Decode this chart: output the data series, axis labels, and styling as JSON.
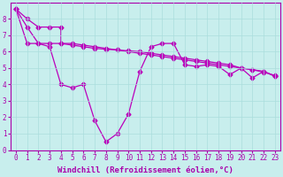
{
  "title": "",
  "xlabel": "Windchill (Refroidissement éolien,°C)",
  "ylabel": "",
  "background_color": "#c8eeed",
  "line_color": "#bb00bb",
  "grid_color": "#aadddd",
  "xlim": [
    -0.5,
    23.5
  ],
  "ylim": [
    0,
    9
  ],
  "yticks": [
    0,
    1,
    2,
    3,
    4,
    5,
    6,
    7,
    8
  ],
  "xticks": [
    0,
    1,
    2,
    3,
    4,
    5,
    6,
    7,
    8,
    9,
    10,
    11,
    12,
    13,
    14,
    15,
    16,
    17,
    18,
    19,
    20,
    21,
    22,
    23
  ],
  "line1_x": [
    0,
    1,
    2,
    3,
    4,
    4,
    5,
    6,
    7,
    8,
    9,
    10,
    11,
    12,
    13,
    14,
    15,
    16,
    17,
    18,
    19,
    20,
    21,
    22,
    23
  ],
  "line1_y": [
    8.6,
    8.0,
    7.5,
    7.5,
    7.5,
    6.5,
    6.5,
    6.4,
    6.3,
    6.2,
    6.1,
    6.0,
    5.9,
    5.8,
    5.7,
    5.6,
    5.5,
    5.4,
    5.3,
    5.2,
    5.1,
    5.0,
    4.9,
    4.8,
    4.5
  ],
  "line2_x": [
    0,
    1,
    2,
    3,
    4,
    5,
    6,
    7,
    8,
    9,
    10,
    11,
    12,
    13,
    14,
    15,
    16,
    17,
    18,
    19,
    20,
    21,
    22,
    23
  ],
  "line2_y": [
    8.6,
    7.5,
    6.5,
    6.5,
    6.5,
    6.4,
    6.3,
    6.2,
    6.15,
    6.1,
    6.05,
    6.0,
    5.9,
    5.8,
    5.7,
    5.6,
    5.5,
    5.4,
    5.3,
    5.2,
    5.0,
    4.9,
    4.75,
    4.55
  ],
  "line3_x": [
    0,
    1,
    2,
    3,
    4,
    5,
    6,
    7,
    8,
    9,
    10,
    11,
    12,
    13,
    14,
    15,
    16,
    17,
    18,
    19,
    20,
    21,
    22,
    23
  ],
  "line3_y": [
    8.6,
    6.5,
    6.5,
    6.3,
    4.0,
    3.8,
    4.0,
    1.8,
    0.5,
    1.0,
    2.2,
    4.8,
    6.3,
    6.5,
    6.5,
    5.2,
    5.1,
    5.2,
    5.1,
    4.6,
    5.0,
    4.4,
    4.8,
    4.5
  ],
  "marker": "D",
  "markersize": 2.5,
  "linewidth": 0.9,
  "xlabel_fontsize": 6.5,
  "tick_fontsize": 5.5,
  "tick_color": "#aa00aa",
  "label_color": "#aa00aa"
}
